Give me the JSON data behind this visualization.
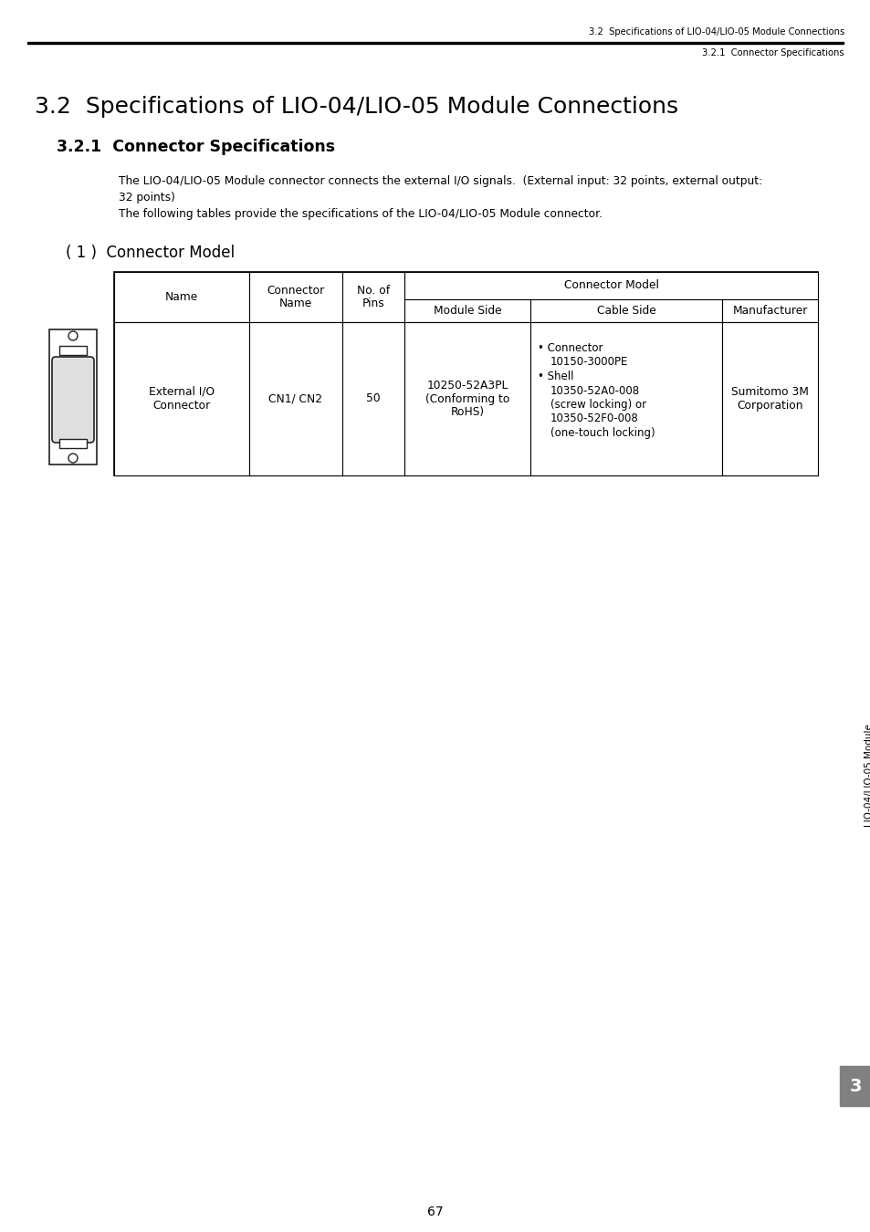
{
  "page_header_right_line1": "3.2  Specifications of LIO-04/LIO-05 Module Connections",
  "page_header_right_line2": "3.2.1  Connector Specifications",
  "main_title": "3.2  Specifications of LIO-04/LIO-05 Module Connections",
  "section_title": "3.2.1  Connector Specifications",
  "body_text_line1": "The LIO-04/LIO-05 Module connector connects the external I/O signals.  (External input: 32 points, external output:",
  "body_text_line2": "32 points)",
  "body_text_line3": "The following tables provide the specifications of the LIO-04/LIO-05 Module connector.",
  "subsection_title": "( 1 )  Connector Model",
  "table_connector_model_span": "Connector Model",
  "table_col1_h1": "Name",
  "table_col2_h1": "Connector\nName",
  "table_col3_h1": "No. of\nPins",
  "table_col4_h2": "Module Side",
  "table_col5_h2": "Cable Side",
  "table_col6_h2": "Manufacturer",
  "table_data_name": "External I/O\nConnector",
  "table_data_connector_name": "CN1/ CN2",
  "table_data_pins": "50",
  "table_data_module_side": "10250-52A3PL\n(Conforming to\nRoHS)",
  "cable_line1": "• Connector",
  "cable_line2": "10150-3000PE",
  "cable_line3": "• Shell",
  "cable_line4": "10350-52A0-008",
  "cable_line5": "(screw locking) or",
  "cable_line6": "10350-52F0-008",
  "cable_line7": "(one-touch locking)",
  "table_data_manufacturer": "Sumitomo 3M\nCorporation",
  "side_label": "LIO-04/LIO-05 Module",
  "page_number": "67",
  "tab_number": "3",
  "bg_color": "#ffffff",
  "text_color": "#000000",
  "header_line_color": "#000000",
  "table_border_color": "#000000",
  "tab_bg_color": "#808080",
  "tab_text_color": "#ffffff",
  "figw": 9.54,
  "figh": 13.5,
  "dpi": 100
}
